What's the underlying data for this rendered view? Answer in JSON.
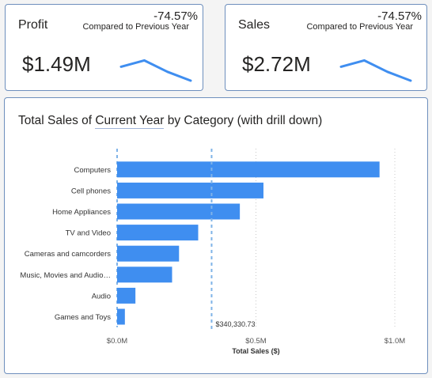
{
  "kpis": {
    "profit": {
      "title": "Profit",
      "delta": "-74.57%",
      "compare": "Compared to Previous Year",
      "value": "$1.49M",
      "trend": [
        0.55,
        0.8,
        0.35,
        0.0
      ]
    },
    "sales": {
      "title": "Sales",
      "delta": "-74.57%",
      "compare": "Compared to Previous Year",
      "value": "$2.72M",
      "trend": [
        0.55,
        0.8,
        0.35,
        0.0
      ]
    }
  },
  "chart": {
    "title_pre": "Total Sales of ",
    "title_link": "Current Year",
    "title_post": " by Category (with drill down)"
  },
  "colors": {
    "bar": "#3f8ef0",
    "sparkline": "#3f8ef0",
    "border": "#6e8fbd",
    "reference": "#7fb3e8"
  },
  "chart_data": {
    "type": "bar",
    "orientation": "horizontal",
    "categories": [
      "Computers",
      "Cell phones",
      "Home Appliances",
      "TV and Video",
      "Cameras and camcorders",
      "Music, Movies and Audio…",
      "Audio",
      "Games and Toys"
    ],
    "values": [
      945000,
      527000,
      442000,
      292000,
      223000,
      198000,
      66000,
      28000
    ],
    "xlabel": "Total Sales ($)",
    "xticks": [
      "$0.0M",
      "$0.5M",
      "$1.0M"
    ],
    "xtick_values": [
      0,
      500000,
      1000000
    ],
    "xlim": [
      0,
      1000000
    ],
    "reference_line": {
      "value": 340330.73,
      "label": "$340,330.73"
    },
    "grid": true
  }
}
